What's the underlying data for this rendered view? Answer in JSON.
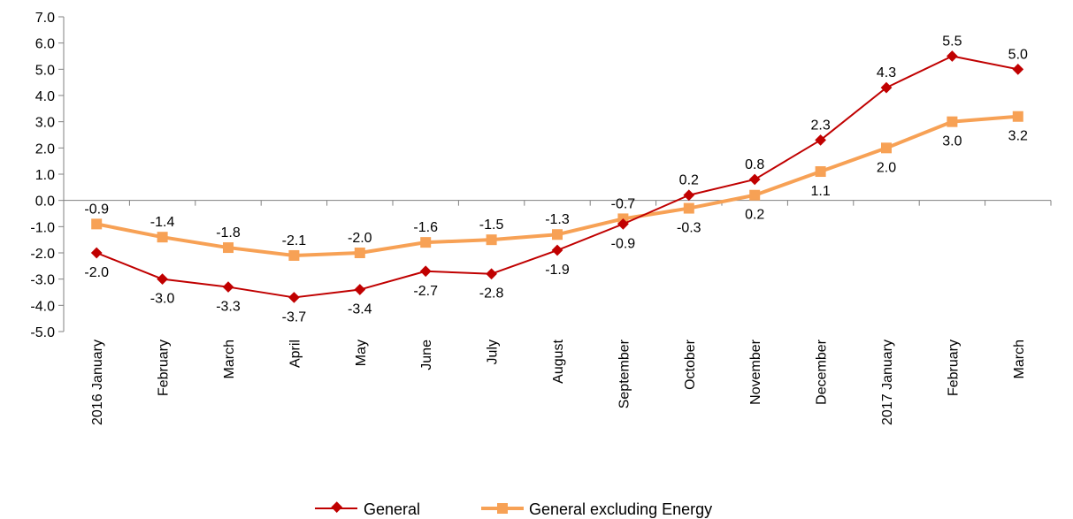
{
  "chart_data": {
    "type": "line",
    "categories": [
      "2016 January",
      "February",
      "March",
      "April",
      "May",
      "June",
      "July",
      "August",
      "September",
      "October",
      "November",
      "December",
      "2017 January",
      "February",
      "March"
    ],
    "ylim": [
      -5.0,
      7.0
    ],
    "yticks": [
      "7.0",
      "6.0",
      "5.0",
      "4.0",
      "3.0",
      "2.0",
      "1.0",
      "0.0",
      "-1.0",
      "-2.0",
      "-3.0",
      "-4.0",
      "-5.0"
    ],
    "grid": false,
    "legend_position": "bottom",
    "series": [
      {
        "name": "General",
        "color": "#c00000",
        "marker": "diamond",
        "values": [
          -2.0,
          -3.0,
          -3.3,
          -3.7,
          -3.4,
          -2.7,
          -2.8,
          -1.9,
          -0.9,
          0.2,
          0.8,
          2.3,
          4.3,
          5.5,
          5.0
        ],
        "labels": [
          "-2.0",
          "-3.0",
          "-3.3",
          "-3.7",
          "-3.4",
          "-2.7",
          "-2.8",
          "-1.9",
          "-0.9",
          "0.2",
          "0.8",
          "2.3",
          "4.3",
          "5.5",
          "5.0"
        ]
      },
      {
        "name": "General excluding Energy",
        "color": "#f7a155",
        "marker": "square",
        "values": [
          -0.9,
          -1.4,
          -1.8,
          -2.1,
          -2.0,
          -1.6,
          -1.5,
          -1.3,
          -0.7,
          -0.3,
          0.2,
          1.1,
          2.0,
          3.0,
          3.2
        ],
        "labels": [
          "-0.9",
          "-1.4",
          "-1.8",
          "-2.1",
          "-2.0",
          "-1.6",
          "-1.5",
          "-1.3",
          "-0.7",
          "-0.3",
          "0.2",
          "1.1",
          "2.0",
          "3.0",
          "3.2"
        ]
      }
    ]
  }
}
